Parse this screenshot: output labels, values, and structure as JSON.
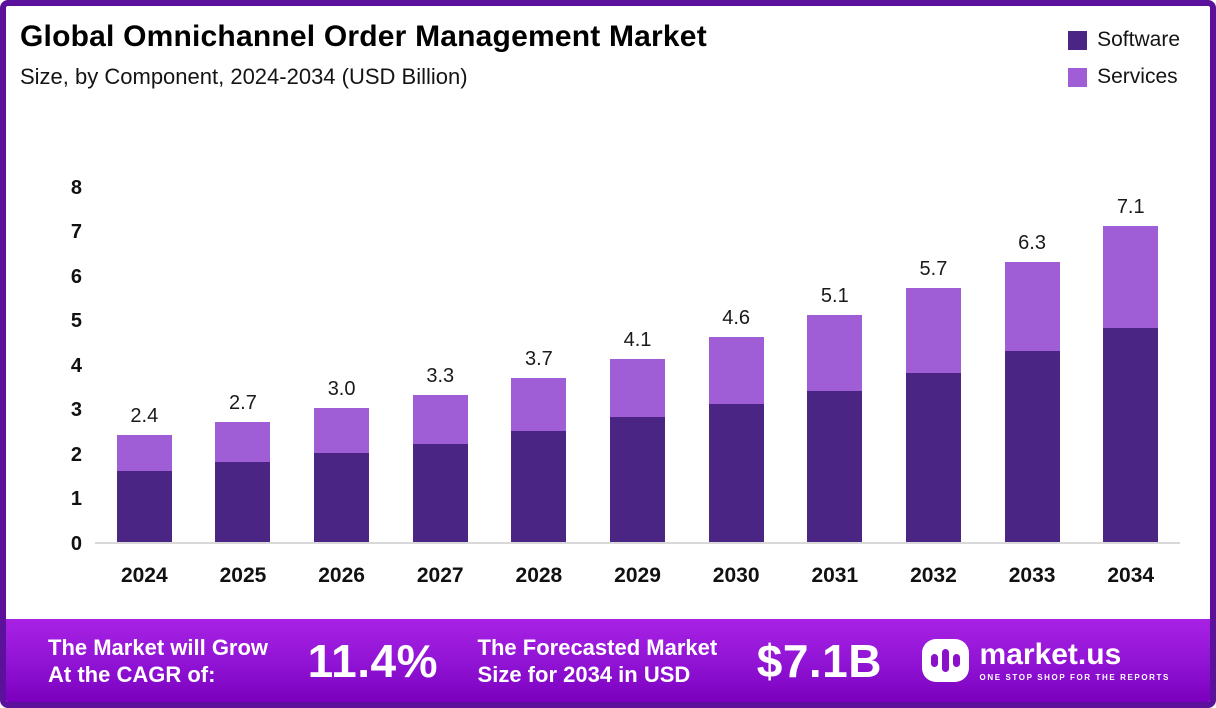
{
  "header": {
    "title": "Global Omnichannel Order Management Market",
    "subtitle": "Size, by Component, 2024-2034 (USD Billion)"
  },
  "legend": [
    {
      "label": "Software",
      "color": "#4b2583"
    },
    {
      "label": "Services",
      "color": "#a05ed6"
    }
  ],
  "chart_data": {
    "type": "bar",
    "stacked": true,
    "title": "Global Omnichannel Order Management Market",
    "subtitle": "Size, by Component, 2024-2034 (USD Billion)",
    "categories": [
      "2024",
      "2025",
      "2026",
      "2027",
      "2028",
      "2029",
      "2030",
      "2031",
      "2032",
      "2033",
      "2034"
    ],
    "series": [
      {
        "name": "Software",
        "color": "#4b2583",
        "values": [
          1.6,
          1.8,
          2.0,
          2.2,
          2.5,
          2.8,
          3.1,
          3.4,
          3.8,
          4.3,
          4.8
        ]
      },
      {
        "name": "Services",
        "color": "#a05ed6",
        "values": [
          0.8,
          0.9,
          1.0,
          1.1,
          1.2,
          1.3,
          1.5,
          1.7,
          1.9,
          2.0,
          2.3
        ]
      }
    ],
    "totals": [
      2.4,
      2.7,
      3.0,
      3.3,
      3.7,
      4.1,
      4.6,
      5.1,
      5.7,
      6.3,
      7.1
    ],
    "total_labels": [
      "2.4",
      "2.7",
      "3.0",
      "3.3",
      "3.7",
      "4.1",
      "4.6",
      "5.1",
      "5.7",
      "6.3",
      "7.1"
    ],
    "xlabel": "",
    "ylabel": "",
    "ylim": [
      0,
      8
    ],
    "yticks": [
      0,
      1,
      2,
      3,
      4,
      5,
      6,
      7,
      8
    ],
    "grid": false,
    "legend_position": "top-right"
  },
  "footer": {
    "cagr_line1": "The Market will Grow",
    "cagr_line2": "At the CAGR of:",
    "cagr_value": "11.4%",
    "forecast_line1": "The Forecasted Market",
    "forecast_line2": "Size for 2034 in USD",
    "forecast_value": "$7.1B",
    "brand": "market.us",
    "brand_tagline": "ONE STOP SHOP FOR THE REPORTS"
  },
  "colors": {
    "software": "#4b2583",
    "services": "#a05ed6",
    "border": "#5c119c",
    "footer_gradient_top": "#a822e4",
    "footer_gradient_bottom": "#7b00bd"
  }
}
